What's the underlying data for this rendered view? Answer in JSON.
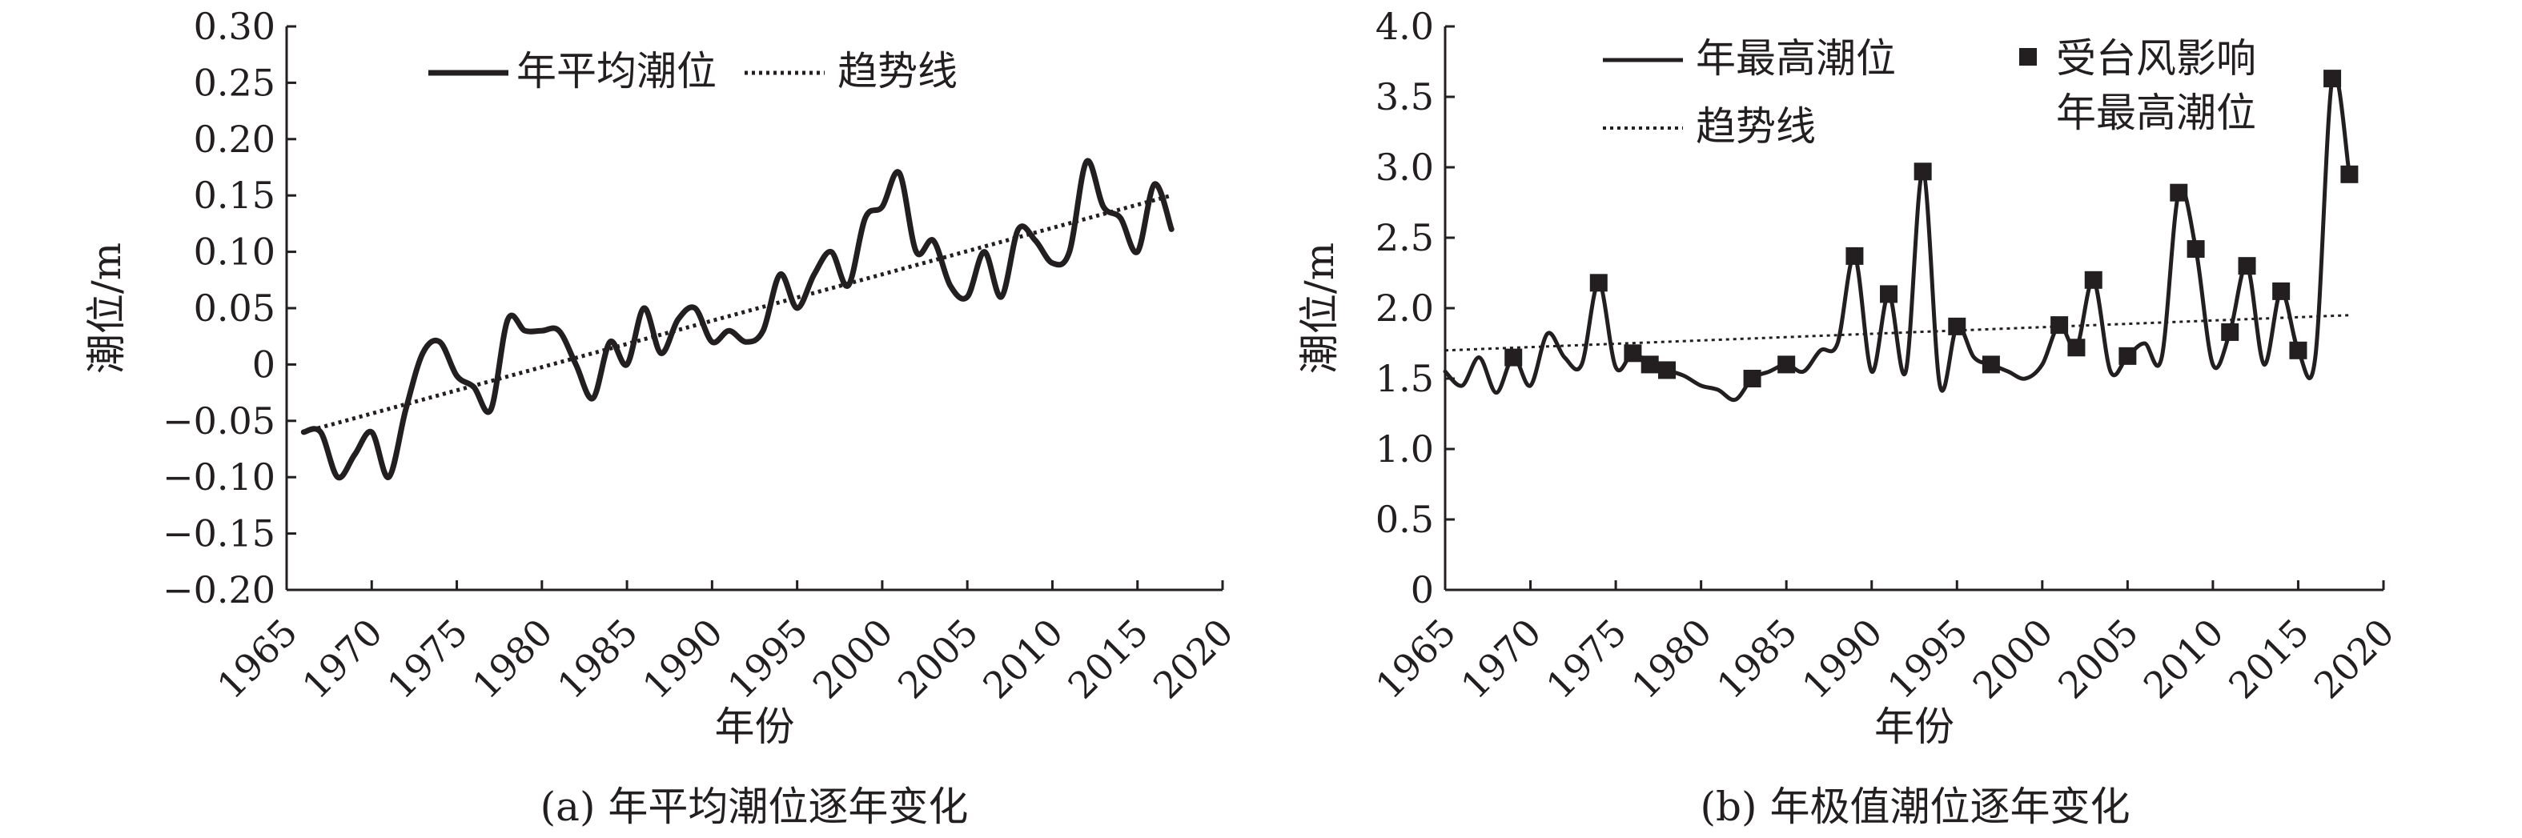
{
  "chart_data": [
    {
      "type": "line",
      "caption": "(a) 年平均潮位逐年变化",
      "xlabel": "年份",
      "ylabel": "潮位/m",
      "xlim": [
        1965,
        2020
      ],
      "ylim": [
        -0.2,
        0.3
      ],
      "xticks": [
        1965,
        1970,
        1975,
        1980,
        1985,
        1990,
        1995,
        2000,
        2005,
        2010,
        2015,
        2020
      ],
      "yticks": [
        -0.2,
        -0.15,
        -0.1,
        -0.05,
        0,
        0.05,
        0.1,
        0.15,
        0.2,
        0.25,
        0.3
      ],
      "ytick_labels": [
        "−0.20",
        "−0.15",
        "−0.10",
        "−0.05",
        "0",
        "0.05",
        "0.10",
        "0.15",
        "0.20",
        "0.25",
        "0.30"
      ],
      "legend_position": "top-center",
      "grid": false,
      "series": [
        {
          "name": "年平均潮位",
          "style": "solid",
          "x": [
            1966,
            1967,
            1968,
            1969,
            1970,
            1971,
            1972,
            1973,
            1974,
            1975,
            1976,
            1977,
            1978,
            1979,
            1980,
            1981,
            1982,
            1983,
            1984,
            1985,
            1986,
            1987,
            1988,
            1989,
            1990,
            1991,
            1992,
            1993,
            1994,
            1995,
            1996,
            1997,
            1998,
            1999,
            2000,
            2001,
            2002,
            2003,
            2004,
            2005,
            2006,
            2007,
            2008,
            2009,
            2010,
            2011,
            2012,
            2013,
            2014,
            2015,
            2016,
            2017
          ],
          "y": [
            -0.06,
            -0.06,
            -0.1,
            -0.08,
            -0.06,
            -0.1,
            -0.04,
            0.01,
            0.02,
            -0.01,
            -0.02,
            -0.04,
            0.04,
            0.03,
            0.03,
            0.03,
            0.0,
            -0.03,
            0.02,
            0.0,
            0.05,
            0.01,
            0.04,
            0.05,
            0.02,
            0.03,
            0.02,
            0.03,
            0.08,
            0.05,
            0.08,
            0.1,
            0.07,
            0.13,
            0.14,
            0.17,
            0.1,
            0.11,
            0.07,
            0.06,
            0.1,
            0.06,
            0.12,
            0.11,
            0.09,
            0.1,
            0.18,
            0.14,
            0.13,
            0.1,
            0.16,
            0.12
          ]
        },
        {
          "name": "趋势线",
          "style": "dotted",
          "x": [
            1966,
            2017
          ],
          "y": [
            -0.06,
            0.15
          ]
        }
      ]
    },
    {
      "type": "line",
      "caption": "(b) 年极值潮位逐年变化",
      "xlabel": "年份",
      "ylabel": "潮位/m",
      "xlim": [
        1965,
        2020
      ],
      "ylim": [
        0,
        4.0
      ],
      "xticks": [
        1965,
        1970,
        1975,
        1980,
        1985,
        1990,
        1995,
        2000,
        2005,
        2010,
        2015,
        2020
      ],
      "yticks": [
        0,
        0.5,
        1.0,
        1.5,
        2.0,
        2.5,
        3.0,
        3.5,
        4.0
      ],
      "ytick_labels": [
        "0",
        "0.5",
        "1.0",
        "1.5",
        "2.0",
        "2.5",
        "3.0",
        "3.5",
        "4.0"
      ],
      "legend_position": "top",
      "grid": false,
      "series": [
        {
          "name": "年最高潮位",
          "style": "solid",
          "x": [
            1965,
            1966,
            1967,
            1968,
            1969,
            1970,
            1971,
            1972,
            1973,
            1974,
            1975,
            1976,
            1977,
            1978,
            1979,
            1980,
            1981,
            1982,
            1983,
            1984,
            1985,
            1986,
            1987,
            1988,
            1989,
            1990,
            1991,
            1992,
            1993,
            1994,
            1995,
            1996,
            1997,
            1998,
            1999,
            2000,
            2001,
            2002,
            2003,
            2004,
            2005,
            2006,
            2007,
            2008,
            2009,
            2010,
            2011,
            2012,
            2013,
            2014,
            2015,
            2016,
            2017,
            2018
          ],
          "y": [
            1.55,
            1.45,
            1.65,
            1.4,
            1.65,
            1.45,
            1.82,
            1.65,
            1.6,
            2.18,
            1.58,
            1.68,
            1.6,
            1.56,
            1.52,
            1.45,
            1.42,
            1.35,
            1.5,
            1.55,
            1.6,
            1.55,
            1.7,
            1.75,
            2.37,
            1.55,
            2.1,
            1.55,
            2.97,
            1.45,
            1.87,
            1.65,
            1.6,
            1.55,
            1.5,
            1.6,
            1.88,
            1.72,
            2.2,
            1.55,
            1.66,
            1.75,
            1.65,
            2.82,
            2.42,
            1.6,
            1.83,
            2.3,
            1.6,
            2.12,
            1.7,
            1.65,
            3.63,
            2.95
          ]
        },
        {
          "name": "趋势线",
          "style": "dotted",
          "x": [
            1965,
            2018
          ],
          "y": [
            1.7,
            1.95
          ]
        },
        {
          "name": "受台风影响年最高潮位",
          "legend_lines": [
            "受台风影响",
            "年最高潮位"
          ],
          "style": "square-markers",
          "x": [
            1969,
            1974,
            1976,
            1977,
            1978,
            1983,
            1985,
            1989,
            1991,
            1993,
            1995,
            1997,
            2001,
            2002,
            2003,
            2005,
            2008,
            2009,
            2011,
            2012,
            2014,
            2015,
            2017,
            2018
          ],
          "y": [
            1.65,
            2.18,
            1.68,
            1.6,
            1.56,
            1.5,
            1.6,
            2.37,
            2.1,
            2.97,
            1.87,
            1.6,
            1.88,
            1.72,
            2.2,
            1.66,
            2.82,
            2.42,
            1.83,
            2.3,
            2.12,
            1.7,
            3.63,
            2.95
          ]
        }
      ]
    }
  ]
}
